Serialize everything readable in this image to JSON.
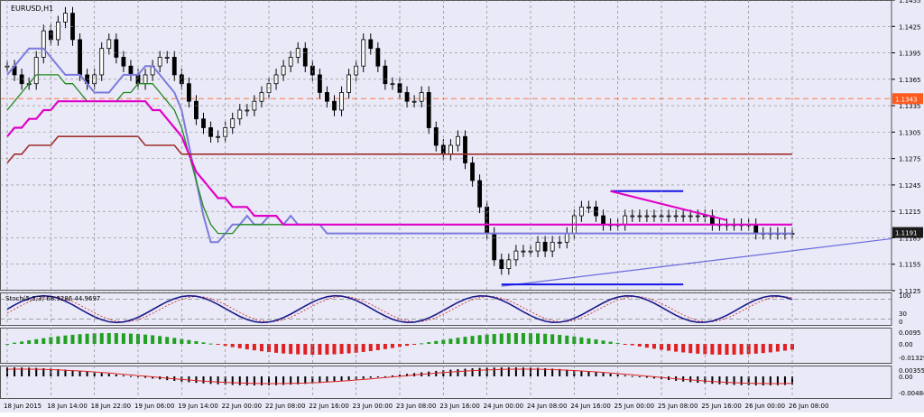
{
  "window": {
    "title": "EURUSD,H1",
    "stoch_label": "Stoch(5,3,3) 68.9286 44.9697"
  },
  "colors": {
    "background": "#e9e9f7",
    "grid": "#8a8a8a",
    "bull": "#ffffff",
    "bear": "#000000",
    "ma_fast": "#7b7bde",
    "ma_medium": "#1f8a1f",
    "ma_slow": "#e000c8",
    "ma_long": "#a0302c",
    "trendline": "#6b6be0",
    "channel": "#1414e6",
    "hline": "#ff7a40",
    "price_box_red": "#ff5a1e",
    "price_box_dark": "#1a1a1a"
  },
  "chart_data": [
    {
      "type": "candlestick",
      "title": "EURUSD,H1",
      "ylim": [
        1.1125,
        1.1455
      ],
      "y_ticks": [
        "1.1455",
        "1.1425",
        "1.1395",
        "1.1365",
        "1.1335",
        "1.1305",
        "1.1275",
        "1.1245",
        "1.1215",
        "1.1185",
        "1.1155",
        "1.1125"
      ],
      "x_ticks": [
        "18 Jun 2015",
        "18 Jun 14:00",
        "18 Jun 22:00",
        "19 Jun 06:00",
        "19 Jun 14:00",
        "22 Jun 00:00",
        "22 Jun 08:00",
        "22 Jun 16:00",
        "23 Jun 00:00",
        "23 Jun 08:00",
        "23 Jun 16:00",
        "24 Jun 00:00",
        "24 Jun 08:00",
        "24 Jun 16:00",
        "25 Jun 00:00",
        "25 Jun 08:00",
        "25 Jun 16:00",
        "26 Jun 00:00",
        "26 Jun 08:00"
      ],
      "current_price": "1.1191",
      "marked_level": "1.1343",
      "close": [
        1.138,
        1.137,
        1.136,
        1.136,
        1.139,
        1.142,
        1.141,
        1.143,
        1.144,
        1.141,
        1.137,
        1.136,
        1.137,
        1.14,
        1.141,
        1.139,
        1.138,
        1.137,
        1.136,
        1.137,
        1.138,
        1.139,
        1.139,
        1.137,
        1.136,
        1.134,
        1.132,
        1.131,
        1.13,
        1.13,
        1.131,
        1.132,
        1.133,
        1.133,
        1.134,
        1.135,
        1.136,
        1.137,
        1.138,
        1.139,
        1.14,
        1.138,
        1.137,
        1.135,
        1.134,
        1.133,
        1.135,
        1.137,
        1.138,
        1.141,
        1.14,
        1.138,
        1.136,
        1.136,
        1.135,
        1.134,
        1.134,
        1.135,
        1.131,
        1.129,
        1.128,
        1.129,
        1.13,
        1.127,
        1.125,
        1.122,
        1.119,
        1.116,
        1.115,
        1.116,
        1.117,
        1.117,
        1.117,
        1.118,
        1.117,
        1.118,
        1.118,
        1.119,
        1.121,
        1.122,
        1.122,
        1.121,
        1.12,
        1.12,
        1.12,
        1.121,
        1.121,
        1.121,
        1.121,
        1.121,
        1.121,
        1.121,
        1.121,
        1.121,
        1.121,
        1.121,
        1.121,
        1.12,
        1.12,
        1.12,
        1.12,
        1.12,
        1.12,
        1.119,
        1.119,
        1.119,
        1.119,
        1.119,
        1.119
      ],
      "series": [
        {
          "name": "",
          "values": [
            1.137,
            1.138,
            1.139,
            1.14,
            1.14,
            1.14,
            1.139,
            1.138,
            1.137,
            1.137,
            1.137,
            1.136,
            1.135,
            1.135,
            1.135,
            1.136,
            1.137,
            1.137,
            1.137,
            1.138,
            1.138,
            1.137,
            1.136,
            1.135,
            1.133,
            1.129,
            1.125,
            1.121,
            1.118,
            1.118,
            1.119,
            1.12,
            1.12,
            1.121,
            1.12,
            1.12,
            1.121,
            1.121,
            1.12,
            1.121,
            1.12,
            1.12,
            1.12,
            1.12,
            1.119,
            1.119,
            1.119,
            1.119,
            1.119,
            1.119,
            1.119,
            1.119,
            1.119,
            1.119,
            1.119,
            1.119,
            1.119,
            1.119,
            1.119,
            1.119,
            1.119,
            1.119,
            1.119,
            1.119,
            1.119,
            1.119,
            1.119,
            1.119,
            1.119,
            1.119,
            1.119,
            1.119,
            1.119,
            1.119,
            1.119,
            1.119,
            1.119,
            1.119,
            1.119,
            1.119,
            1.119,
            1.119,
            1.119,
            1.119,
            1.119,
            1.119,
            1.119,
            1.119,
            1.119,
            1.119,
            1.119,
            1.119,
            1.119,
            1.119,
            1.119,
            1.119,
            1.119,
            1.119,
            1.119,
            1.119,
            1.119,
            1.119,
            1.119,
            1.119,
            1.119,
            1.119,
            1.119,
            1.119,
            1.119
          ]
        },
        {
          "name": "",
          "values": [
            1.133,
            1.134,
            1.135,
            1.136,
            1.137,
            1.137,
            1.137,
            1.137,
            1.136,
            1.136,
            1.135,
            1.134,
            1.134,
            1.134,
            1.134,
            1.134,
            1.135,
            1.135,
            1.136,
            1.136,
            1.136,
            1.135,
            1.134,
            1.133,
            1.131,
            1.128,
            1.125,
            1.122,
            1.12,
            1.119,
            1.119,
            1.119,
            1.12,
            1.12,
            1.12,
            1.12,
            1.12,
            1.12,
            1.12,
            1.12,
            1.12,
            1.12,
            1.12,
            1.12,
            1.12,
            1.12,
            1.12,
            1.12,
            1.12,
            1.12,
            1.12,
            1.12,
            1.12,
            1.12,
            1.12,
            1.12,
            1.12,
            1.12,
            1.12,
            1.12,
            1.12,
            1.12,
            1.12,
            1.12,
            1.12,
            1.12,
            1.12,
            1.12,
            1.12,
            1.12,
            1.12,
            1.12,
            1.12,
            1.12,
            1.12,
            1.12,
            1.12,
            1.12,
            1.12,
            1.12,
            1.12,
            1.12,
            1.12,
            1.12,
            1.12,
            1.12,
            1.12,
            1.12,
            1.12,
            1.12,
            1.12,
            1.12,
            1.12,
            1.12,
            1.12,
            1.12,
            1.12,
            1.12,
            1.12,
            1.12,
            1.12,
            1.12,
            1.12,
            1.12,
            1.12,
            1.12,
            1.12,
            1.12,
            1.12
          ]
        },
        {
          "name": "",
          "values": [
            1.13,
            1.131,
            1.131,
            1.132,
            1.132,
            1.133,
            1.133,
            1.134,
            1.134,
            1.134,
            1.134,
            1.134,
            1.134,
            1.134,
            1.134,
            1.134,
            1.134,
            1.134,
            1.134,
            1.134,
            1.133,
            1.133,
            1.132,
            1.131,
            1.13,
            1.128,
            1.126,
            1.125,
            1.124,
            1.123,
            1.123,
            1.122,
            1.122,
            1.122,
            1.121,
            1.121,
            1.121,
            1.121,
            1.12,
            1.12,
            1.12,
            1.12,
            1.12,
            1.12,
            1.12,
            1.12,
            1.12,
            1.12,
            1.12,
            1.12,
            1.12,
            1.12,
            1.12,
            1.12,
            1.12,
            1.12,
            1.12,
            1.12,
            1.12,
            1.12,
            1.12,
            1.12,
            1.12,
            1.12,
            1.12,
            1.12,
            1.12,
            1.12,
            1.12,
            1.12,
            1.12,
            1.12,
            1.12,
            1.12,
            1.12,
            1.12,
            1.12,
            1.12,
            1.12,
            1.12,
            1.12,
            1.12,
            1.12,
            1.12,
            1.12,
            1.12,
            1.12,
            1.12,
            1.12,
            1.12,
            1.12,
            1.12,
            1.12,
            1.12,
            1.12,
            1.12,
            1.12,
            1.12,
            1.12,
            1.12,
            1.12,
            1.12,
            1.12,
            1.12,
            1.12,
            1.12,
            1.12,
            1.12,
            1.12
          ]
        },
        {
          "name": "",
          "values": [
            1.127,
            1.128,
            1.128,
            1.129,
            1.129,
            1.129,
            1.129,
            1.13,
            1.13,
            1.13,
            1.13,
            1.13,
            1.13,
            1.13,
            1.13,
            1.13,
            1.13,
            1.13,
            1.13,
            1.129,
            1.129,
            1.129,
            1.129,
            1.129,
            1.128,
            1.128,
            1.128,
            1.128,
            1.128,
            1.128,
            1.128,
            1.128,
            1.128,
            1.128,
            1.128,
            1.128,
            1.128,
            1.128,
            1.128,
            1.128,
            1.128,
            1.128,
            1.128,
            1.128,
            1.128,
            1.128,
            1.128,
            1.128,
            1.128,
            1.128,
            1.128,
            1.128,
            1.128,
            1.128,
            1.128,
            1.128,
            1.128,
            1.128,
            1.128,
            1.128,
            1.128,
            1.128,
            1.128,
            1.128,
            1.128,
            1.128,
            1.128,
            1.128,
            1.128,
            1.128,
            1.128,
            1.128,
            1.128,
            1.128,
            1.128,
            1.128,
            1.128,
            1.128,
            1.128,
            1.128,
            1.128,
            1.128,
            1.128,
            1.128,
            1.128,
            1.128,
            1.128,
            1.128,
            1.128,
            1.128,
            1.128,
            1.128,
            1.128,
            1.128,
            1.128,
            1.128,
            1.128,
            1.128,
            1.128,
            1.128,
            1.128,
            1.128,
            1.128,
            1.128,
            1.128,
            1.128,
            1.128,
            1.128,
            1.128
          ]
        }
      ]
    },
    {
      "type": "line",
      "title": "Stoch(5,3,3) 68.9286 44.9697",
      "y_ticks": [
        "100",
        "30",
        "0"
      ],
      "ylim": [
        0,
        100
      ]
    },
    {
      "type": "bar",
      "title": "",
      "y_ticks": [
        "0.0095",
        "0.00",
        "-0.01329"
      ]
    },
    {
      "type": "bar",
      "title": "",
      "y_ticks": [
        "0.00355",
        "0.00",
        "-0.00484"
      ]
    }
  ]
}
